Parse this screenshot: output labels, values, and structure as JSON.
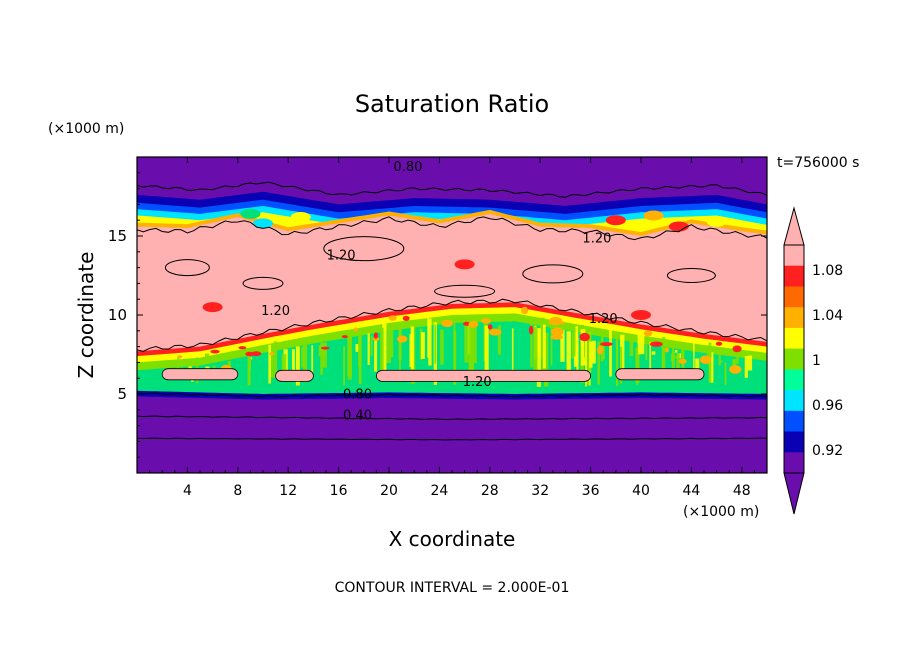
{
  "chart_data": {
    "type": "heatmap",
    "title": "Saturation Ratio",
    "xlabel": "X coordinate",
    "ylabel": "Z coordinate",
    "x_unit": "(×1000 m)",
    "y_unit": "(×1000 m)",
    "time_label": "t=756000 s",
    "footer": "CONTOUR INTERVAL = 2.000E-01",
    "xlim": [
      0,
      50
    ],
    "ylim": [
      0,
      20
    ],
    "x_ticks": [
      4,
      8,
      12,
      16,
      20,
      24,
      28,
      32,
      36,
      40,
      44,
      48
    ],
    "x_tick_labels": [
      "4",
      "8",
      "12",
      "16",
      "20",
      "24",
      "28",
      "32",
      "36",
      "40",
      "44",
      "48"
    ],
    "y_ticks": [
      5,
      10,
      15
    ],
    "y_tick_labels": [
      "5",
      "10",
      "15"
    ],
    "colorbar": {
      "levels": [
        0.92,
        0.96,
        1,
        1.04,
        1.08
      ],
      "level_labels": [
        "0.92",
        "0.96",
        "1",
        "1.04",
        "1.08"
      ],
      "colors": [
        "#6a0dad",
        "#0a00b4",
        "#0050ff",
        "#00e5ff",
        "#00ff9a",
        "#7fe000",
        "#ffff00",
        "#ffb000",
        "#ff6a00",
        "#ff2020",
        "#ffb0b0"
      ]
    },
    "colors": {
      "sky_purple": "#6a0dad",
      "deep_blue": "#0a00b4",
      "blue": "#0050ff",
      "cyan": "#00e5ff",
      "green": "#00e07a",
      "yellow_green": "#7fe000",
      "yellow": "#ffff00",
      "orange": "#ffb000",
      "red": "#ff2020",
      "pink": "#ffb0b0"
    },
    "contour_labels": [
      {
        "text": "0.80",
        "x": 21.5,
        "z": 19.1
      },
      {
        "text": "1.20",
        "x": 16.2,
        "z": 13.5
      },
      {
        "text": "1.20",
        "x": 36.5,
        "z": 14.6
      },
      {
        "text": "1.20",
        "x": 11.0,
        "z": 10.0
      },
      {
        "text": "1.20",
        "x": 37.0,
        "z": 9.5
      },
      {
        "text": "1.20",
        "x": 27.0,
        "z": 5.5
      },
      {
        "text": "0.80",
        "x": 17.5,
        "z": 4.7
      },
      {
        "text": "0.40",
        "x": 17.5,
        "z": 3.4
      }
    ]
  }
}
